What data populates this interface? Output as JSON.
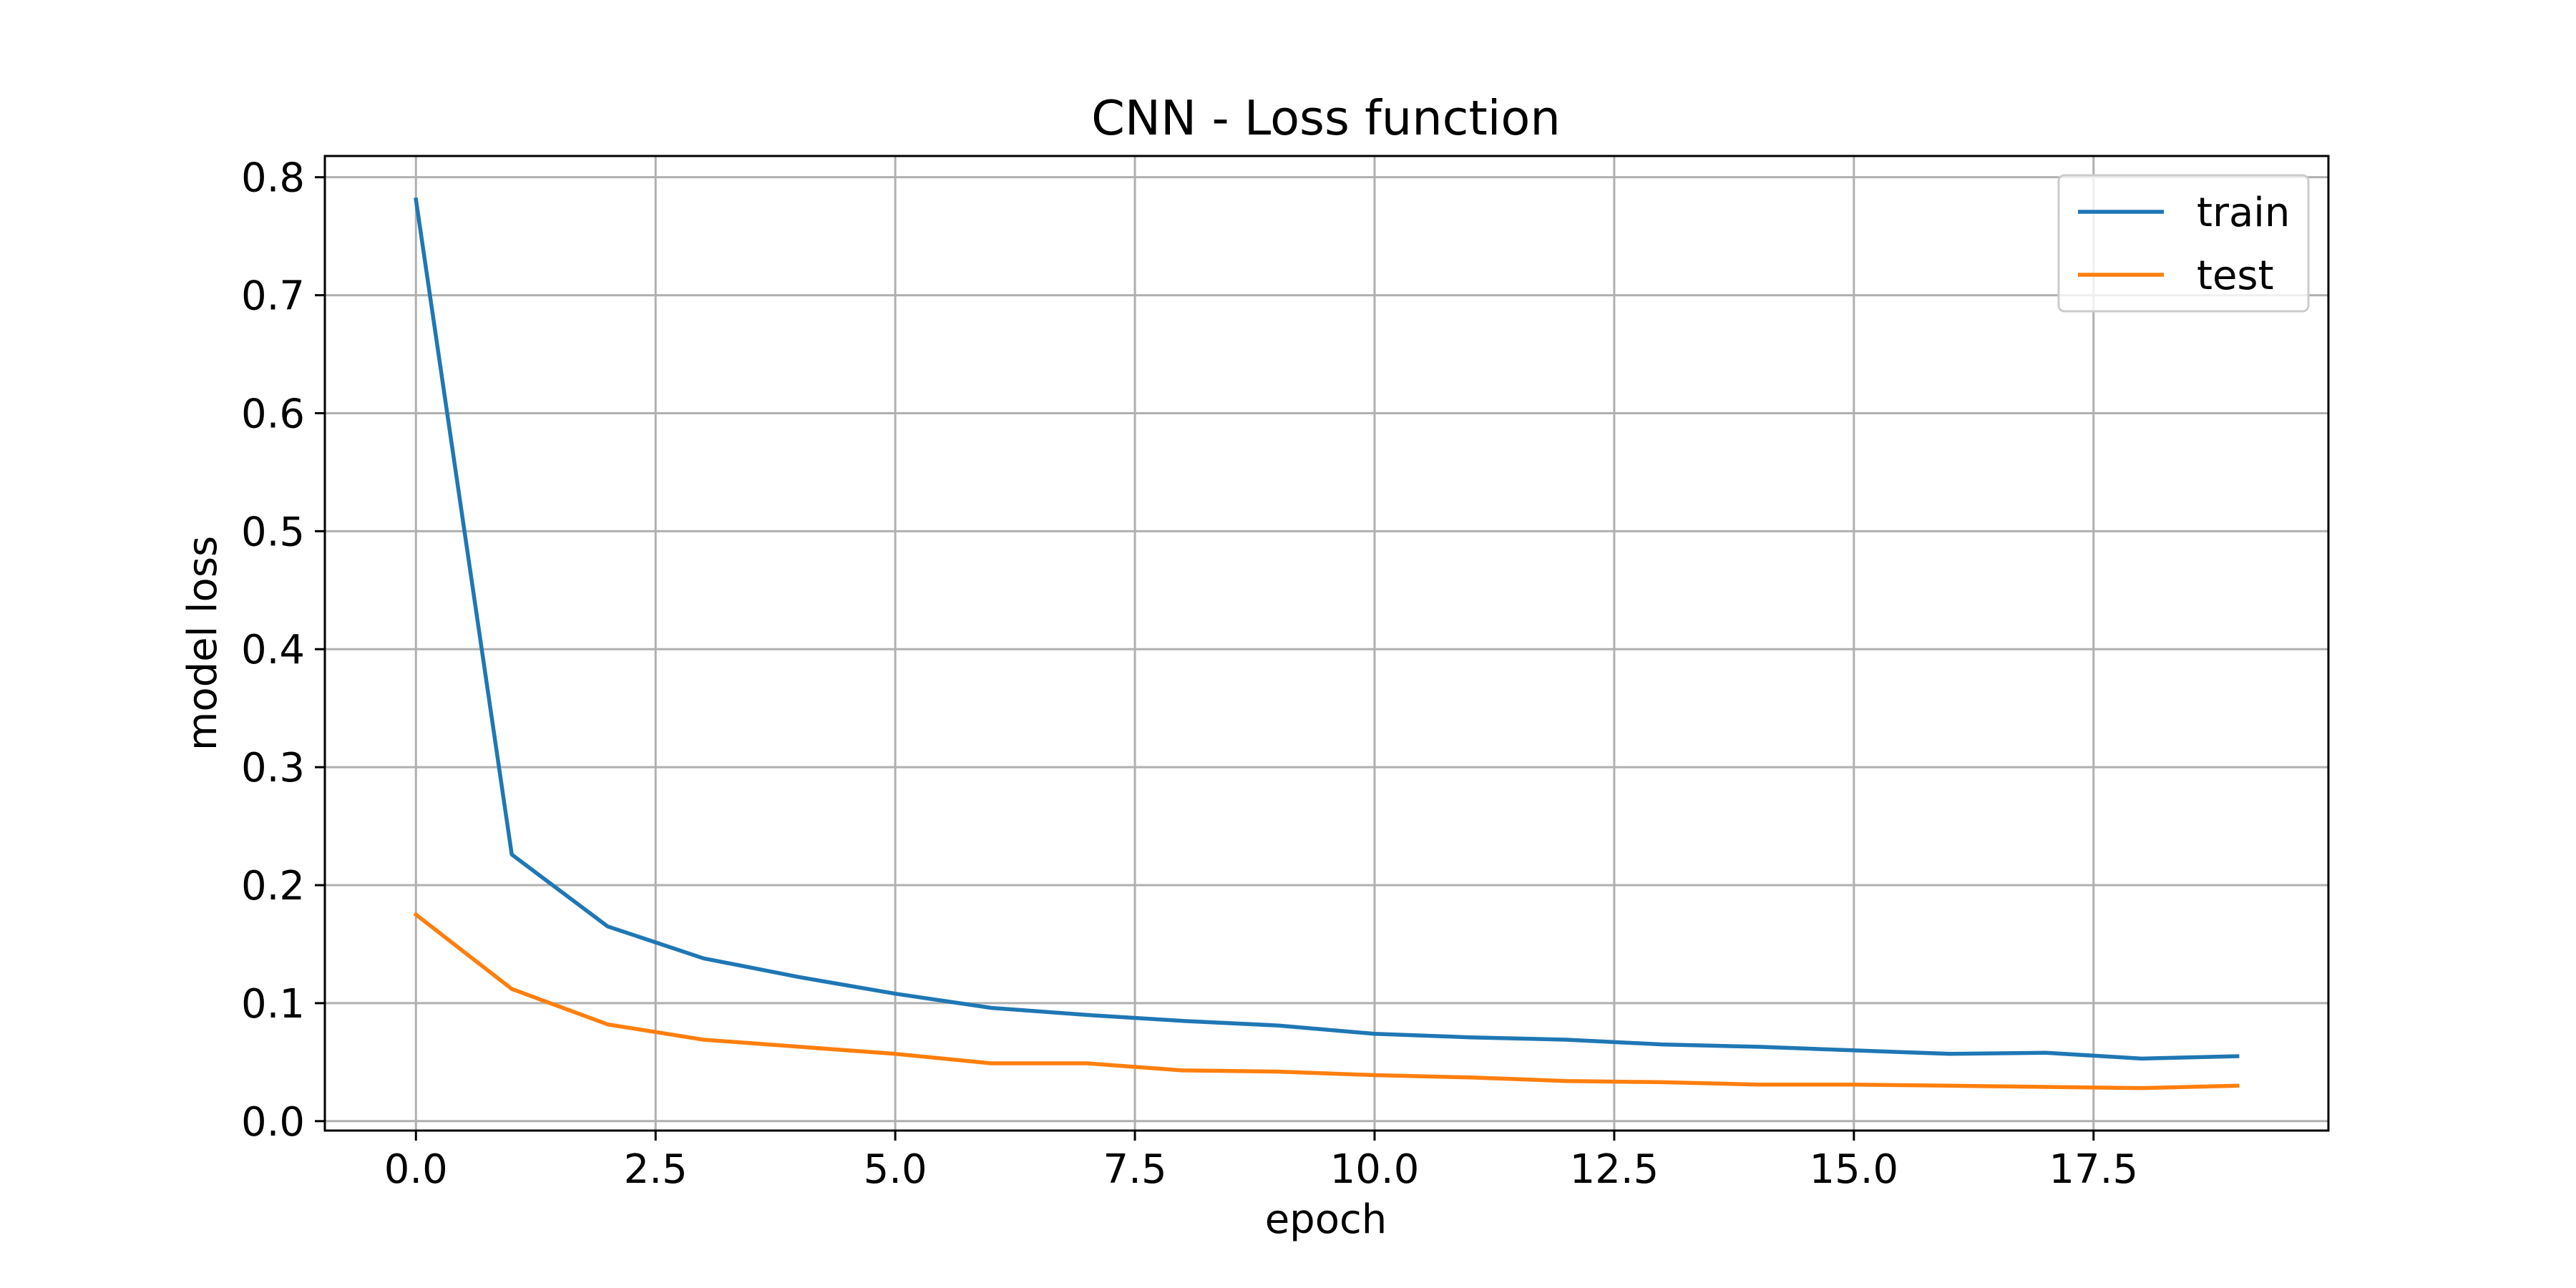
{
  "chart_data": {
    "type": "line",
    "title": "CNN - Loss function",
    "xlabel": "epoch",
    "ylabel": "model loss",
    "xlim": [
      -0.95,
      19.95
    ],
    "ylim": [
      -0.008,
      0.818
    ],
    "xticks": [
      0.0,
      2.5,
      5.0,
      7.5,
      10.0,
      12.5,
      15.0,
      17.5
    ],
    "xtick_labels": [
      "0.0",
      "2.5",
      "5.0",
      "7.5",
      "10.0",
      "12.5",
      "15.0",
      "17.5"
    ],
    "yticks": [
      0.0,
      0.1,
      0.2,
      0.3,
      0.4,
      0.5,
      0.6,
      0.7,
      0.8
    ],
    "ytick_labels": [
      "0.0",
      "0.1",
      "0.2",
      "0.3",
      "0.4",
      "0.5",
      "0.6",
      "0.7",
      "0.8"
    ],
    "grid": true,
    "legend_position": "top-right",
    "x": [
      0,
      1,
      2,
      3,
      4,
      5,
      6,
      7,
      8,
      9,
      10,
      11,
      12,
      13,
      14,
      15,
      16,
      17,
      18,
      19
    ],
    "series": [
      {
        "name": "train",
        "color": "#1f77b4",
        "values": [
          0.781,
          0.226,
          0.165,
          0.138,
          0.122,
          0.108,
          0.096,
          0.09,
          0.085,
          0.081,
          0.074,
          0.071,
          0.069,
          0.065,
          0.063,
          0.06,
          0.057,
          0.058,
          0.053,
          0.055
        ]
      },
      {
        "name": "test",
        "color": "#ff7f0e",
        "values": [
          0.175,
          0.112,
          0.082,
          0.069,
          0.063,
          0.057,
          0.049,
          0.049,
          0.043,
          0.042,
          0.039,
          0.037,
          0.034,
          0.033,
          0.031,
          0.031,
          0.03,
          0.029,
          0.028,
          0.03
        ]
      }
    ]
  }
}
